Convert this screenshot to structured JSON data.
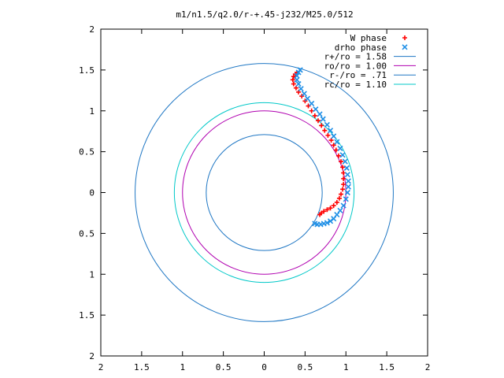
{
  "chart_data": {
    "type": "scatter",
    "title": "m1/n1.5/q2.0/r-+.45-j232/M25.0/512",
    "xlabel": "",
    "ylabel": "",
    "xlim": [
      -2,
      2
    ],
    "ylim": [
      -2,
      2
    ],
    "x_ticks": [
      -2,
      -1.5,
      -1,
      -0.5,
      0,
      0.5,
      1,
      1.5,
      2
    ],
    "y_ticks": [
      -2,
      -1.5,
      -1,
      -0.5,
      0,
      0.5,
      1,
      1.5,
      2
    ],
    "x_tick_labels": [
      "2",
      "1.5",
      "1",
      "0.5",
      "0",
      "0.5",
      "1",
      "1.5",
      "2"
    ],
    "y_tick_labels": [
      "2",
      "1.5",
      "1",
      "0.5",
      "0",
      "0.5",
      "1",
      "1.5",
      "2"
    ],
    "grid": false,
    "legend_position": "top-right",
    "circles": [
      {
        "name": "r+/ro = 1.58",
        "radius": 1.58,
        "color": "#1f77c4"
      },
      {
        "name": "ro/ro = 1.00",
        "radius": 1.0,
        "color": "#b000b0"
      },
      {
        "name": "r-/ro = .71",
        "radius": 0.71,
        "color": "#1f77c4"
      },
      {
        "name": "rc/ro = 1.10",
        "radius": 1.1,
        "color": "#00c8c8"
      }
    ],
    "series": [
      {
        "name": "W phase",
        "marker": "+",
        "color": "#ff0000",
        "points": [
          [
            0.68,
            -0.27
          ],
          [
            0.7,
            -0.25
          ],
          [
            0.73,
            -0.23
          ],
          [
            0.77,
            -0.21
          ],
          [
            0.81,
            -0.19
          ],
          [
            0.85,
            -0.16
          ],
          [
            0.89,
            -0.12
          ],
          [
            0.92,
            -0.07
          ],
          [
            0.94,
            -0.02
          ],
          [
            0.96,
            0.04
          ],
          [
            0.97,
            0.1
          ],
          [
            0.97,
            0.17
          ],
          [
            0.97,
            0.24
          ],
          [
            0.96,
            0.31
          ],
          [
            0.94,
            0.38
          ],
          [
            0.91,
            0.45
          ],
          [
            0.88,
            0.52
          ],
          [
            0.85,
            0.58
          ],
          [
            0.82,
            0.64
          ],
          [
            0.78,
            0.7
          ],
          [
            0.74,
            0.76
          ],
          [
            0.7,
            0.82
          ],
          [
            0.66,
            0.88
          ],
          [
            0.62,
            0.94
          ],
          [
            0.58,
            1.0
          ],
          [
            0.54,
            1.06
          ],
          [
            0.5,
            1.12
          ],
          [
            0.46,
            1.18
          ],
          [
            0.42,
            1.23
          ],
          [
            0.39,
            1.28
          ],
          [
            0.36,
            1.33
          ],
          [
            0.35,
            1.38
          ],
          [
            0.36,
            1.42
          ],
          [
            0.38,
            1.45
          ],
          [
            0.4,
            1.47
          ]
        ]
      },
      {
        "name": "drho phase",
        "marker": "x",
        "color": "#1f8fe6",
        "points": [
          [
            0.62,
            -0.38
          ],
          [
            0.65,
            -0.39
          ],
          [
            0.69,
            -0.39
          ],
          [
            0.73,
            -0.38
          ],
          [
            0.77,
            -0.37
          ],
          [
            0.81,
            -0.35
          ],
          [
            0.85,
            -0.32
          ],
          [
            0.89,
            -0.27
          ],
          [
            0.93,
            -0.22
          ],
          [
            0.97,
            -0.16
          ],
          [
            1.0,
            -0.08
          ],
          [
            1.02,
            0.0
          ],
          [
            1.03,
            0.07
          ],
          [
            1.03,
            0.14
          ],
          [
            1.02,
            0.22
          ],
          [
            1.01,
            0.3
          ],
          [
            0.99,
            0.38
          ],
          [
            0.96,
            0.46
          ],
          [
            0.93,
            0.54
          ],
          [
            0.89,
            0.62
          ],
          [
            0.85,
            0.69
          ],
          [
            0.81,
            0.76
          ],
          [
            0.77,
            0.83
          ],
          [
            0.72,
            0.9
          ],
          [
            0.68,
            0.96
          ],
          [
            0.63,
            1.02
          ],
          [
            0.58,
            1.09
          ],
          [
            0.53,
            1.15
          ],
          [
            0.49,
            1.21
          ],
          [
            0.45,
            1.27
          ],
          [
            0.42,
            1.33
          ],
          [
            0.4,
            1.38
          ],
          [
            0.4,
            1.43
          ],
          [
            0.42,
            1.47
          ],
          [
            0.44,
            1.5
          ]
        ]
      }
    ]
  }
}
